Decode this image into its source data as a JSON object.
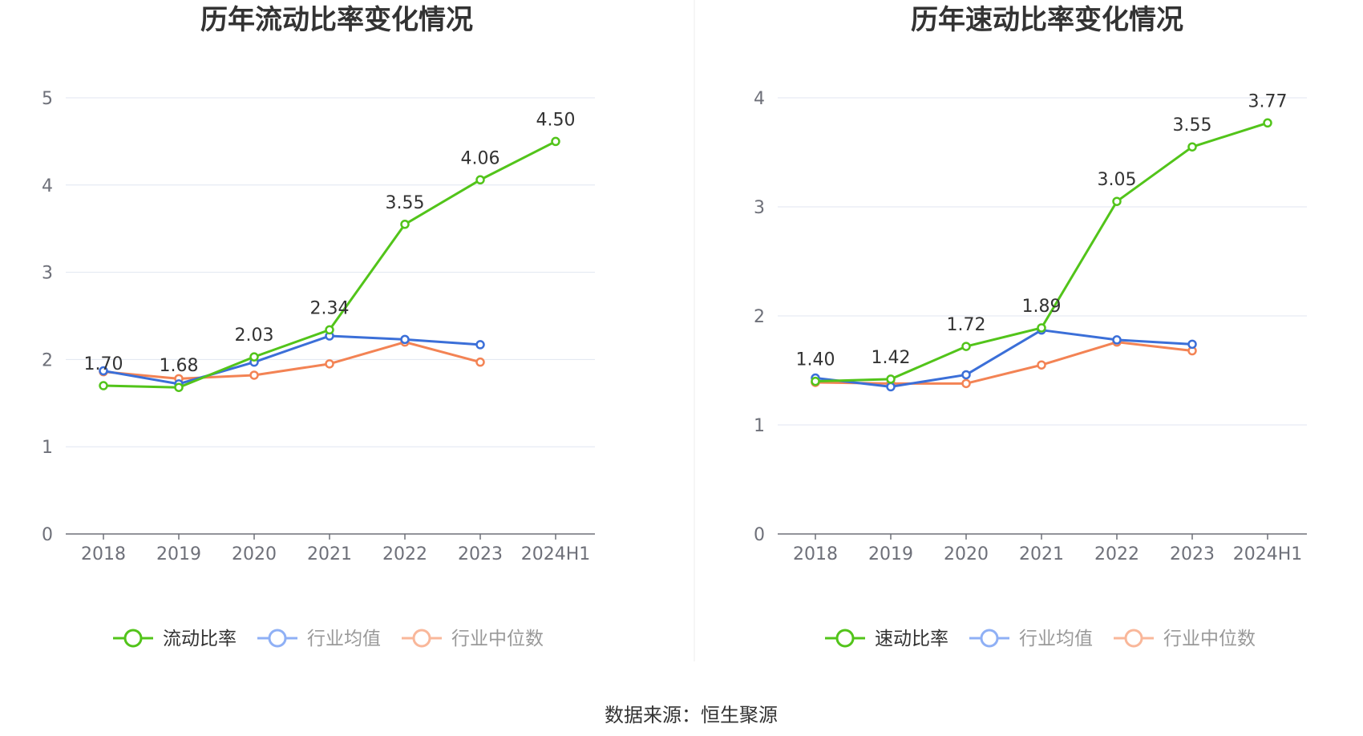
{
  "source": "数据来源：恒生聚源",
  "colors": {
    "main": "#52c41a",
    "avg": "#3b6fd8",
    "median": "#f38354",
    "grid": "#e0e6f1",
    "axis": "#6e7079",
    "divider": "#eeeeee",
    "legend_inactive_avg": "#8fb0f5",
    "legend_inactive_median": "#f9b79a"
  },
  "chart_data": [
    {
      "type": "line",
      "title": "历年流动比率变化情况",
      "categories": [
        "2018",
        "2019",
        "2020",
        "2021",
        "2022",
        "2023",
        "2024H1"
      ],
      "ylim": [
        0,
        5
      ],
      "yticks": [
        "0",
        "1",
        "2",
        "3",
        "4",
        "5"
      ],
      "grid": true,
      "legend_position": "bottom",
      "series": [
        {
          "name": "流动比率",
          "key": "main",
          "values": [
            1.7,
            1.68,
            2.03,
            2.34,
            3.55,
            4.06,
            4.5
          ],
          "labels": [
            "1.70",
            "1.68",
            "2.03",
            "2.34",
            "3.55",
            "4.06",
            "4.50"
          ]
        },
        {
          "name": "行业均值",
          "key": "avg",
          "values": [
            1.87,
            1.72,
            1.97,
            2.27,
            2.23,
            2.17,
            null
          ]
        },
        {
          "name": "行业中位数",
          "key": "median",
          "values": [
            1.86,
            1.78,
            1.82,
            1.95,
            2.2,
            1.97,
            null
          ]
        }
      ]
    },
    {
      "type": "line",
      "title": "历年速动比率变化情况",
      "categories": [
        "2018",
        "2019",
        "2020",
        "2021",
        "2022",
        "2023",
        "2024H1"
      ],
      "ylim": [
        0,
        4
      ],
      "yticks": [
        "0",
        "1",
        "2",
        "3",
        "4"
      ],
      "grid": true,
      "legend_position": "bottom",
      "series": [
        {
          "name": "速动比率",
          "key": "main",
          "values": [
            1.4,
            1.42,
            1.72,
            1.89,
            3.05,
            3.55,
            3.77
          ],
          "labels": [
            "1.40",
            "1.42",
            "1.72",
            "1.89",
            "3.05",
            "3.55",
            "3.77"
          ]
        },
        {
          "name": "行业均值",
          "key": "avg",
          "values": [
            1.43,
            1.35,
            1.46,
            1.87,
            1.78,
            1.74,
            null
          ]
        },
        {
          "name": "行业中位数",
          "key": "median",
          "values": [
            1.39,
            1.38,
            1.38,
            1.55,
            1.76,
            1.68,
            null
          ]
        }
      ]
    }
  ]
}
